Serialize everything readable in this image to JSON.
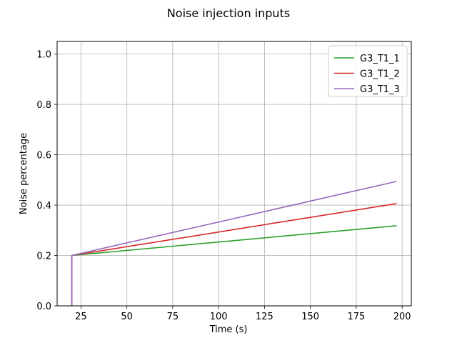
{
  "chart_data": {
    "type": "line",
    "title": "Noise injection inputs",
    "xlabel": "Time (s)",
    "ylabel": "Noise percentage",
    "xlim": [
      12,
      205
    ],
    "ylim": [
      0,
      1.05
    ],
    "xticks": [
      25,
      50,
      75,
      100,
      125,
      150,
      175,
      200
    ],
    "yticks": [
      0.0,
      0.2,
      0.4,
      0.6,
      0.8,
      1.0
    ],
    "grid": true,
    "legend_position": "top-right",
    "series": [
      {
        "name": "G3_T1_1",
        "color": "#2ca02c",
        "x": [
          20,
          20,
          197
        ],
        "y": [
          0.0,
          0.2,
          0.318
        ]
      },
      {
        "name": "G3_T1_2",
        "color": "#d62728",
        "x": [
          20,
          20,
          197
        ],
        "y": [
          0.0,
          0.2,
          0.406
        ]
      },
      {
        "name": "G3_T1_3",
        "color": "#9467bd",
        "x": [
          20,
          20,
          197
        ],
        "y": [
          0.0,
          0.2,
          0.494
        ]
      }
    ]
  }
}
